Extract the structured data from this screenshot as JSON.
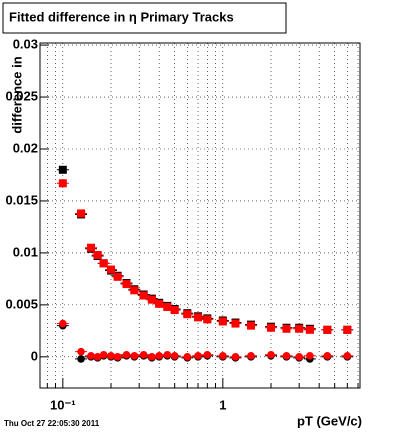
{
  "chart_data": {
    "type": "scatter",
    "title": "Fitted difference in η  Primary Tracks",
    "y_label": "difference in",
    "x_label": "pT (GeV/c)",
    "footer": "Thu Oct 27 22:05:30 2011",
    "log_x": true,
    "grid": true,
    "xlim": [
      0.072,
      7.2
    ],
    "ylim": [
      -0.003,
      0.0302
    ],
    "xticks": [
      {
        "value": 0.1,
        "label": "10⁻¹"
      },
      1
    ],
    "xminorticks": [
      0.08,
      0.09,
      0.2,
      0.3,
      0.4,
      0.5,
      0.6,
      0.7,
      0.8,
      0.9,
      2,
      3,
      4,
      5,
      6,
      7
    ],
    "yticks": [
      0,
      0.005,
      0.01,
      0.015,
      0.02,
      0.025,
      0.03
    ],
    "x": [
      0.1,
      0.13,
      0.15,
      0.165,
      0.18,
      0.2,
      0.22,
      0.25,
      0.28,
      0.32,
      0.36,
      0.4,
      0.45,
      0.5,
      0.6,
      0.7,
      0.8,
      1.0,
      1.2,
      1.5,
      2,
      2.5,
      3,
      3.5,
      4.5,
      6
    ],
    "series": [
      {
        "color": "#000000",
        "marker": "square",
        "values": [
          0.018,
          0.0137,
          0.0104,
          0.0097,
          0.009,
          0.0083,
          0.0078,
          0.0071,
          0.0065,
          0.006,
          0.0056,
          0.0052,
          0.0049,
          0.0046,
          0.0042,
          0.0039,
          0.0037,
          0.0035,
          0.0033,
          0.0031,
          0.0029,
          0.0028,
          0.0028,
          0.0027,
          0.0026,
          0.0026
        ]
      },
      {
        "color": "#ff0000",
        "marker": "square",
        "values": [
          0.0167,
          0.0138,
          0.0105,
          0.0098,
          0.009,
          0.0084,
          0.0077,
          0.007,
          0.0064,
          0.0059,
          0.0055,
          0.0051,
          0.0048,
          0.0045,
          0.0041,
          0.0038,
          0.0036,
          0.0034,
          0.0032,
          0.003,
          0.0028,
          0.0027,
          0.0027,
          0.0026,
          0.0026,
          0.0026
        ]
      },
      {
        "color": "#000000",
        "marker": "circle",
        "values": [
          0.003,
          -0.0002,
          0,
          -0.0001,
          0.0001,
          0,
          -0.0001,
          0.0001,
          0,
          0.0001,
          -0.0001,
          0,
          0.0001,
          0,
          -0.0001,
          0,
          0.0001,
          0,
          -0.0001,
          0,
          0.0001,
          0,
          -0.0001,
          -0.0002,
          0,
          0
        ]
      },
      {
        "color": "#ff0000",
        "marker": "circle",
        "values": [
          0.0032,
          0.0005,
          0.0001,
          0,
          0.0002,
          0.0001,
          0,
          0.0002,
          0.0001,
          0.0002,
          0,
          0.0001,
          0.0002,
          0.0001,
          0,
          0.0001,
          0.0002,
          0.0001,
          0,
          0.0001,
          0.0002,
          0.0001,
          0,
          0.0001,
          0.0001,
          0.0001
        ]
      }
    ]
  }
}
